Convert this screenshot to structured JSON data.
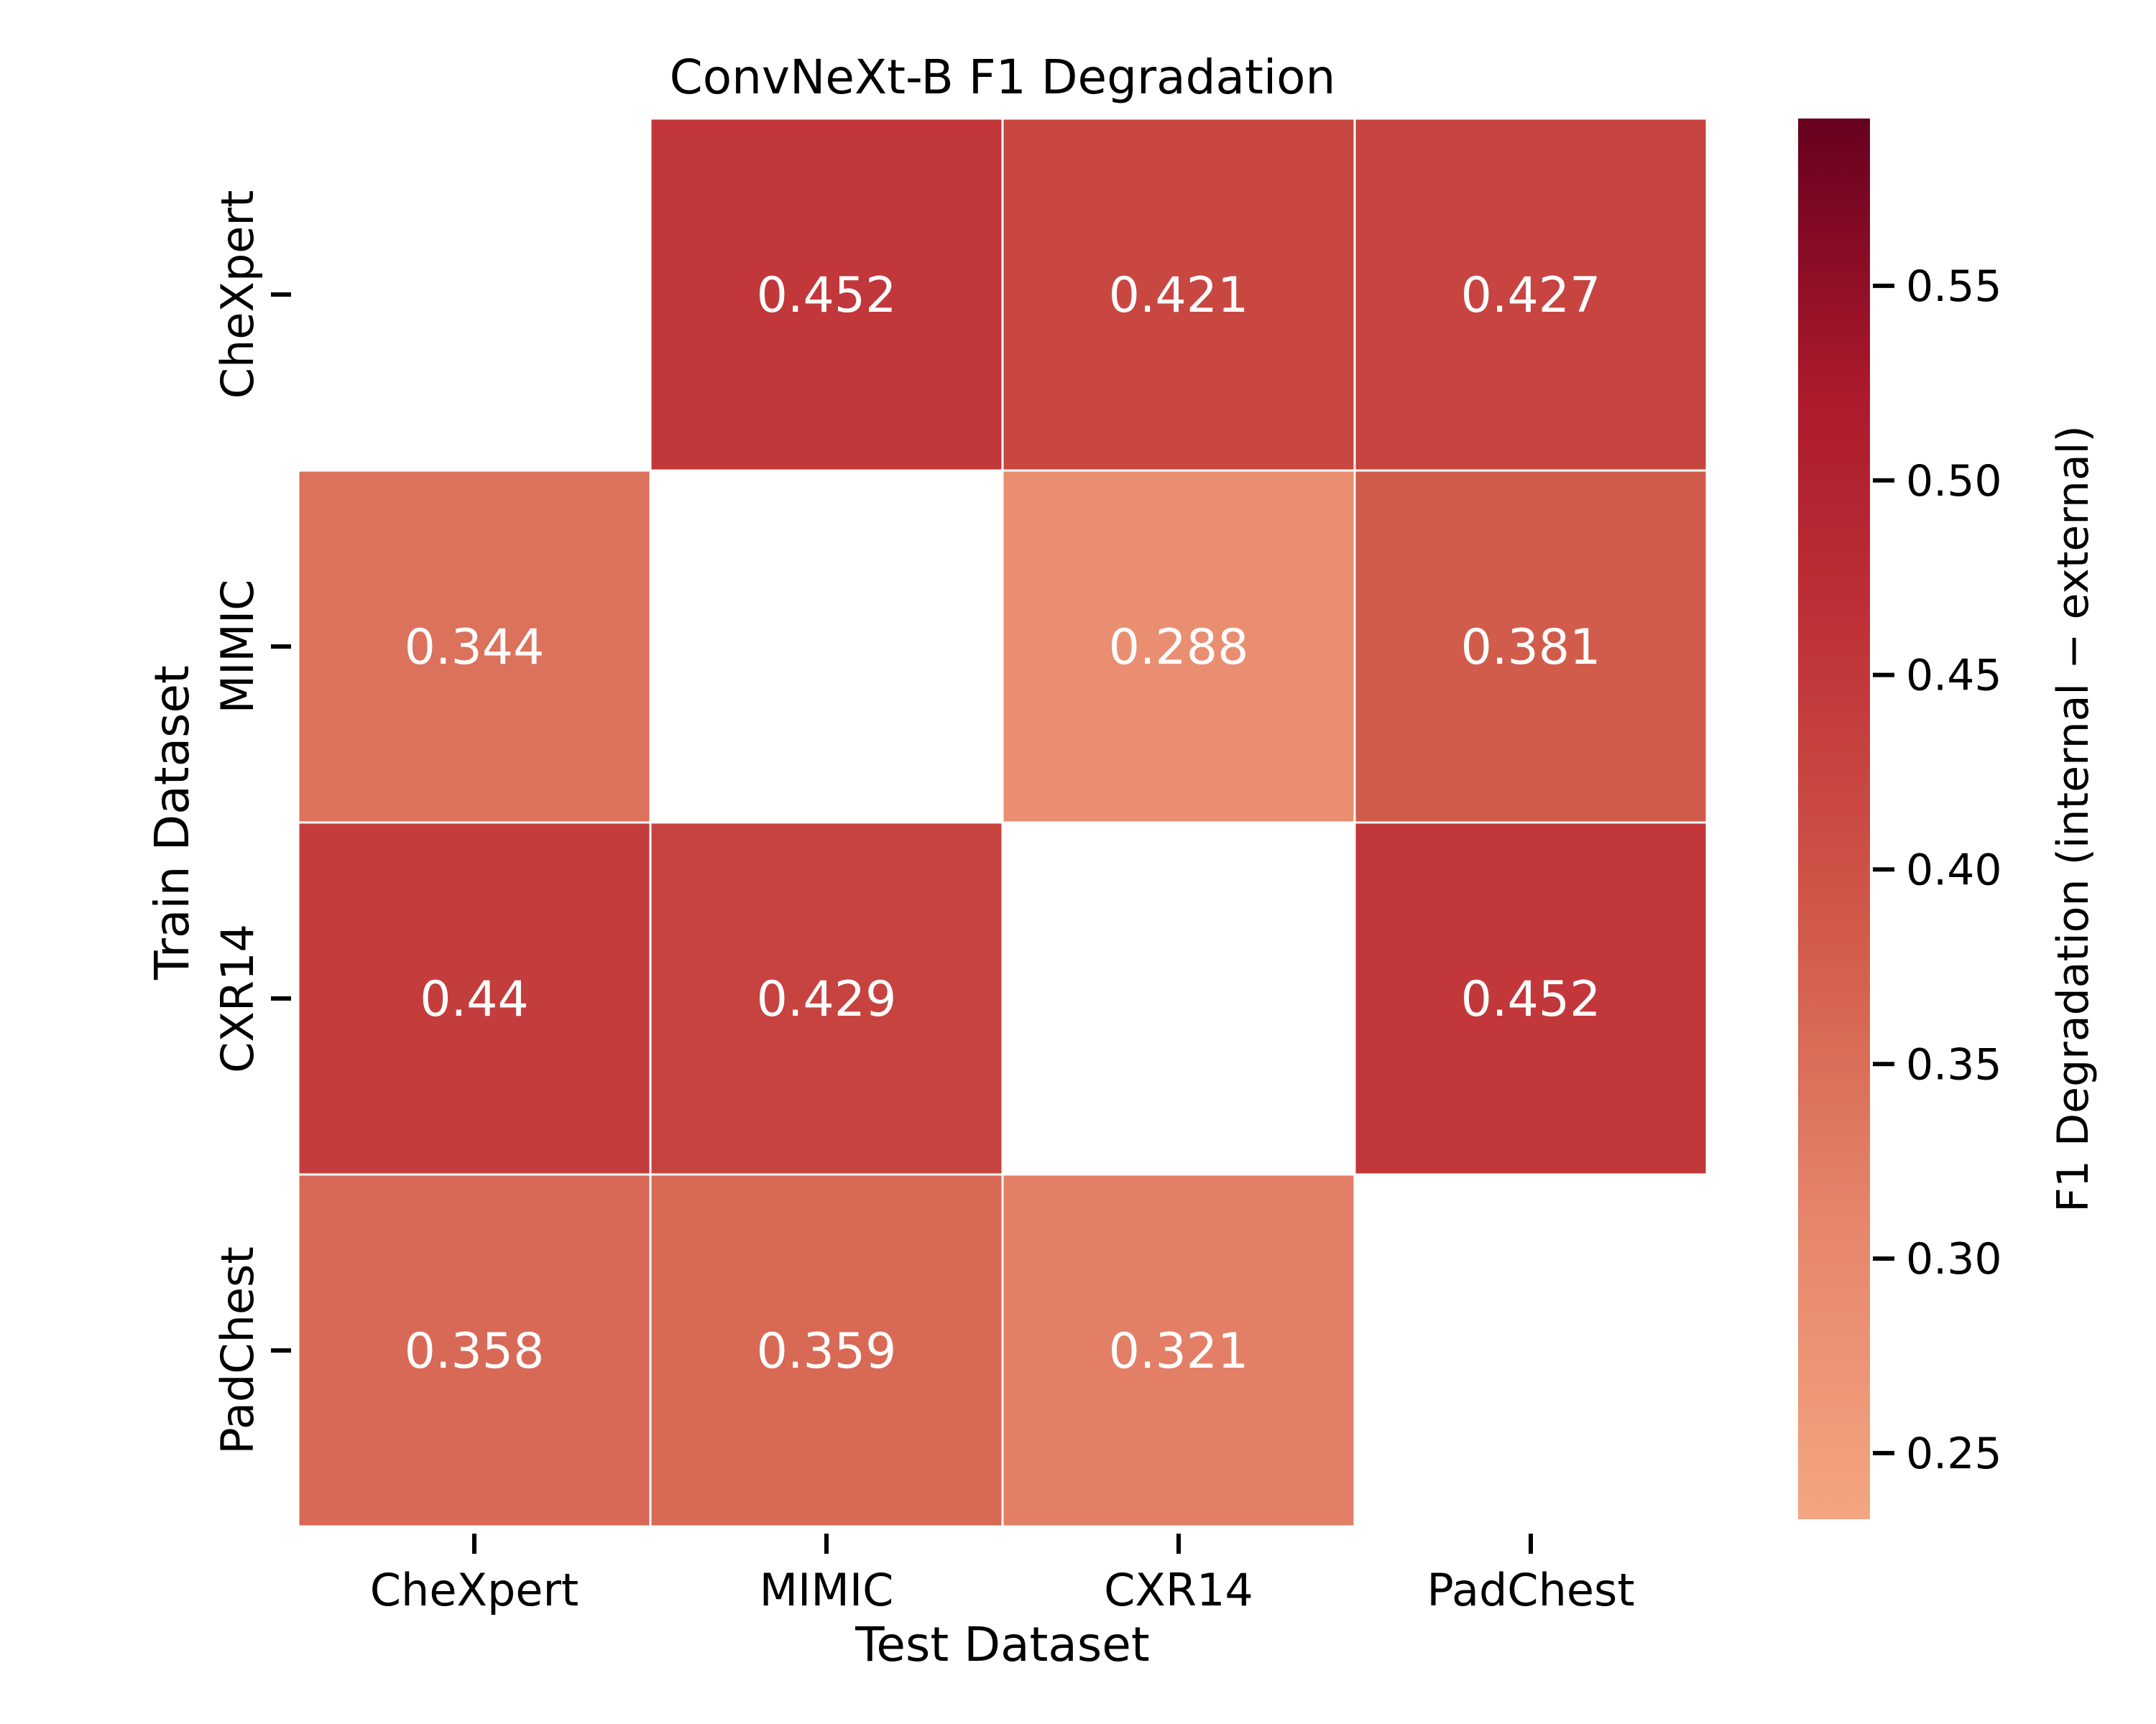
{
  "chart_data": {
    "type": "heatmap",
    "title": "ConvNeXt-B F1 Degradation",
    "xlabel": "Test Dataset",
    "ylabel": "Train Dataset",
    "x_categories": [
      "CheXpert",
      "MIMIC",
      "CXR14",
      "PadChest"
    ],
    "y_categories": [
      "CheXpert",
      "MIMIC",
      "CXR14",
      "PadChest"
    ],
    "values": [
      [
        null,
        0.452,
        0.421,
        0.427
      ],
      [
        0.344,
        null,
        0.288,
        0.381
      ],
      [
        0.44,
        0.429,
        null,
        0.452
      ],
      [
        0.358,
        0.359,
        0.321,
        null
      ]
    ],
    "cell_labels": [
      [
        "",
        "0.452",
        "0.421",
        "0.427"
      ],
      [
        "0.344",
        "",
        "0.288",
        "0.381"
      ],
      [
        "0.44",
        "0.429",
        "",
        "0.452"
      ],
      [
        "0.358",
        "0.359",
        "0.321",
        ""
      ]
    ],
    "colorbar": {
      "label": "F1 Degradation (internal − external)",
      "range": [
        0.233,
        0.593
      ],
      "ticks": [
        0.25,
        0.3,
        0.35,
        0.4,
        0.45,
        0.5,
        0.55
      ],
      "tick_labels": [
        "0.25",
        "0.30",
        "0.35",
        "0.40",
        "0.45",
        "0.50",
        "0.55"
      ],
      "colormap_stops": [
        {
          "v": 0.0,
          "color": "#f4a582"
        },
        {
          "v": 0.22,
          "color": "#e5846a"
        },
        {
          "v": 0.42,
          "color": "#d15a4a"
        },
        {
          "v": 0.65,
          "color": "#bd2f36"
        },
        {
          "v": 0.8,
          "color": "#ad1a2c"
        },
        {
          "v": 1.0,
          "color": "#67001f"
        }
      ]
    },
    "grid": false,
    "legend": "colorbar-right"
  }
}
